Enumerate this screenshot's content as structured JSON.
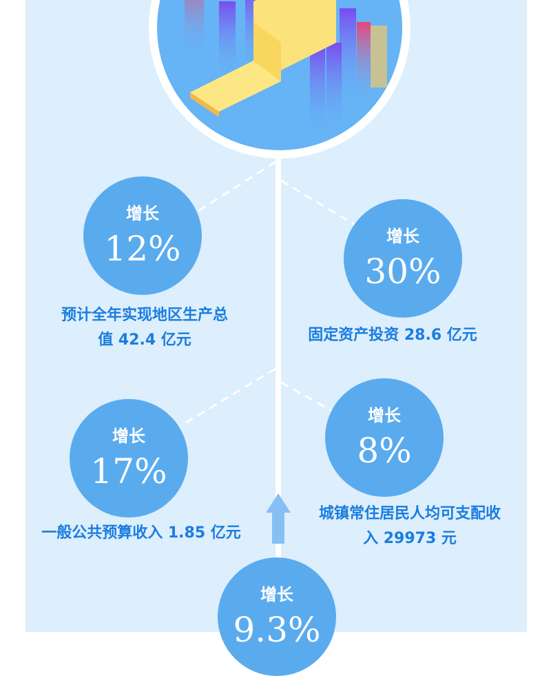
{
  "items": [
    {
      "label": "增长",
      "value": "12%",
      "caption_lines": [
        "预计全年实现地区生产总",
        "值 42.4 亿元"
      ]
    },
    {
      "label": "增长",
      "value": "30%",
      "caption_lines": [
        "固定资产投资 28.6 亿元"
      ]
    },
    {
      "label": "增长",
      "value": "17%",
      "caption_lines": [
        "一般公共预算收入 1.85 亿元"
      ]
    },
    {
      "label": "增长",
      "value": "8%",
      "caption_lines": [
        "城镇常住居民人均可支配收",
        "入 29973 元"
      ]
    },
    {
      "label": "增长",
      "value": "9.3%"
    }
  ],
  "colors": {
    "panel": "#ddeefc",
    "bubble": "#5aabee",
    "caption": "#1a7de0"
  }
}
